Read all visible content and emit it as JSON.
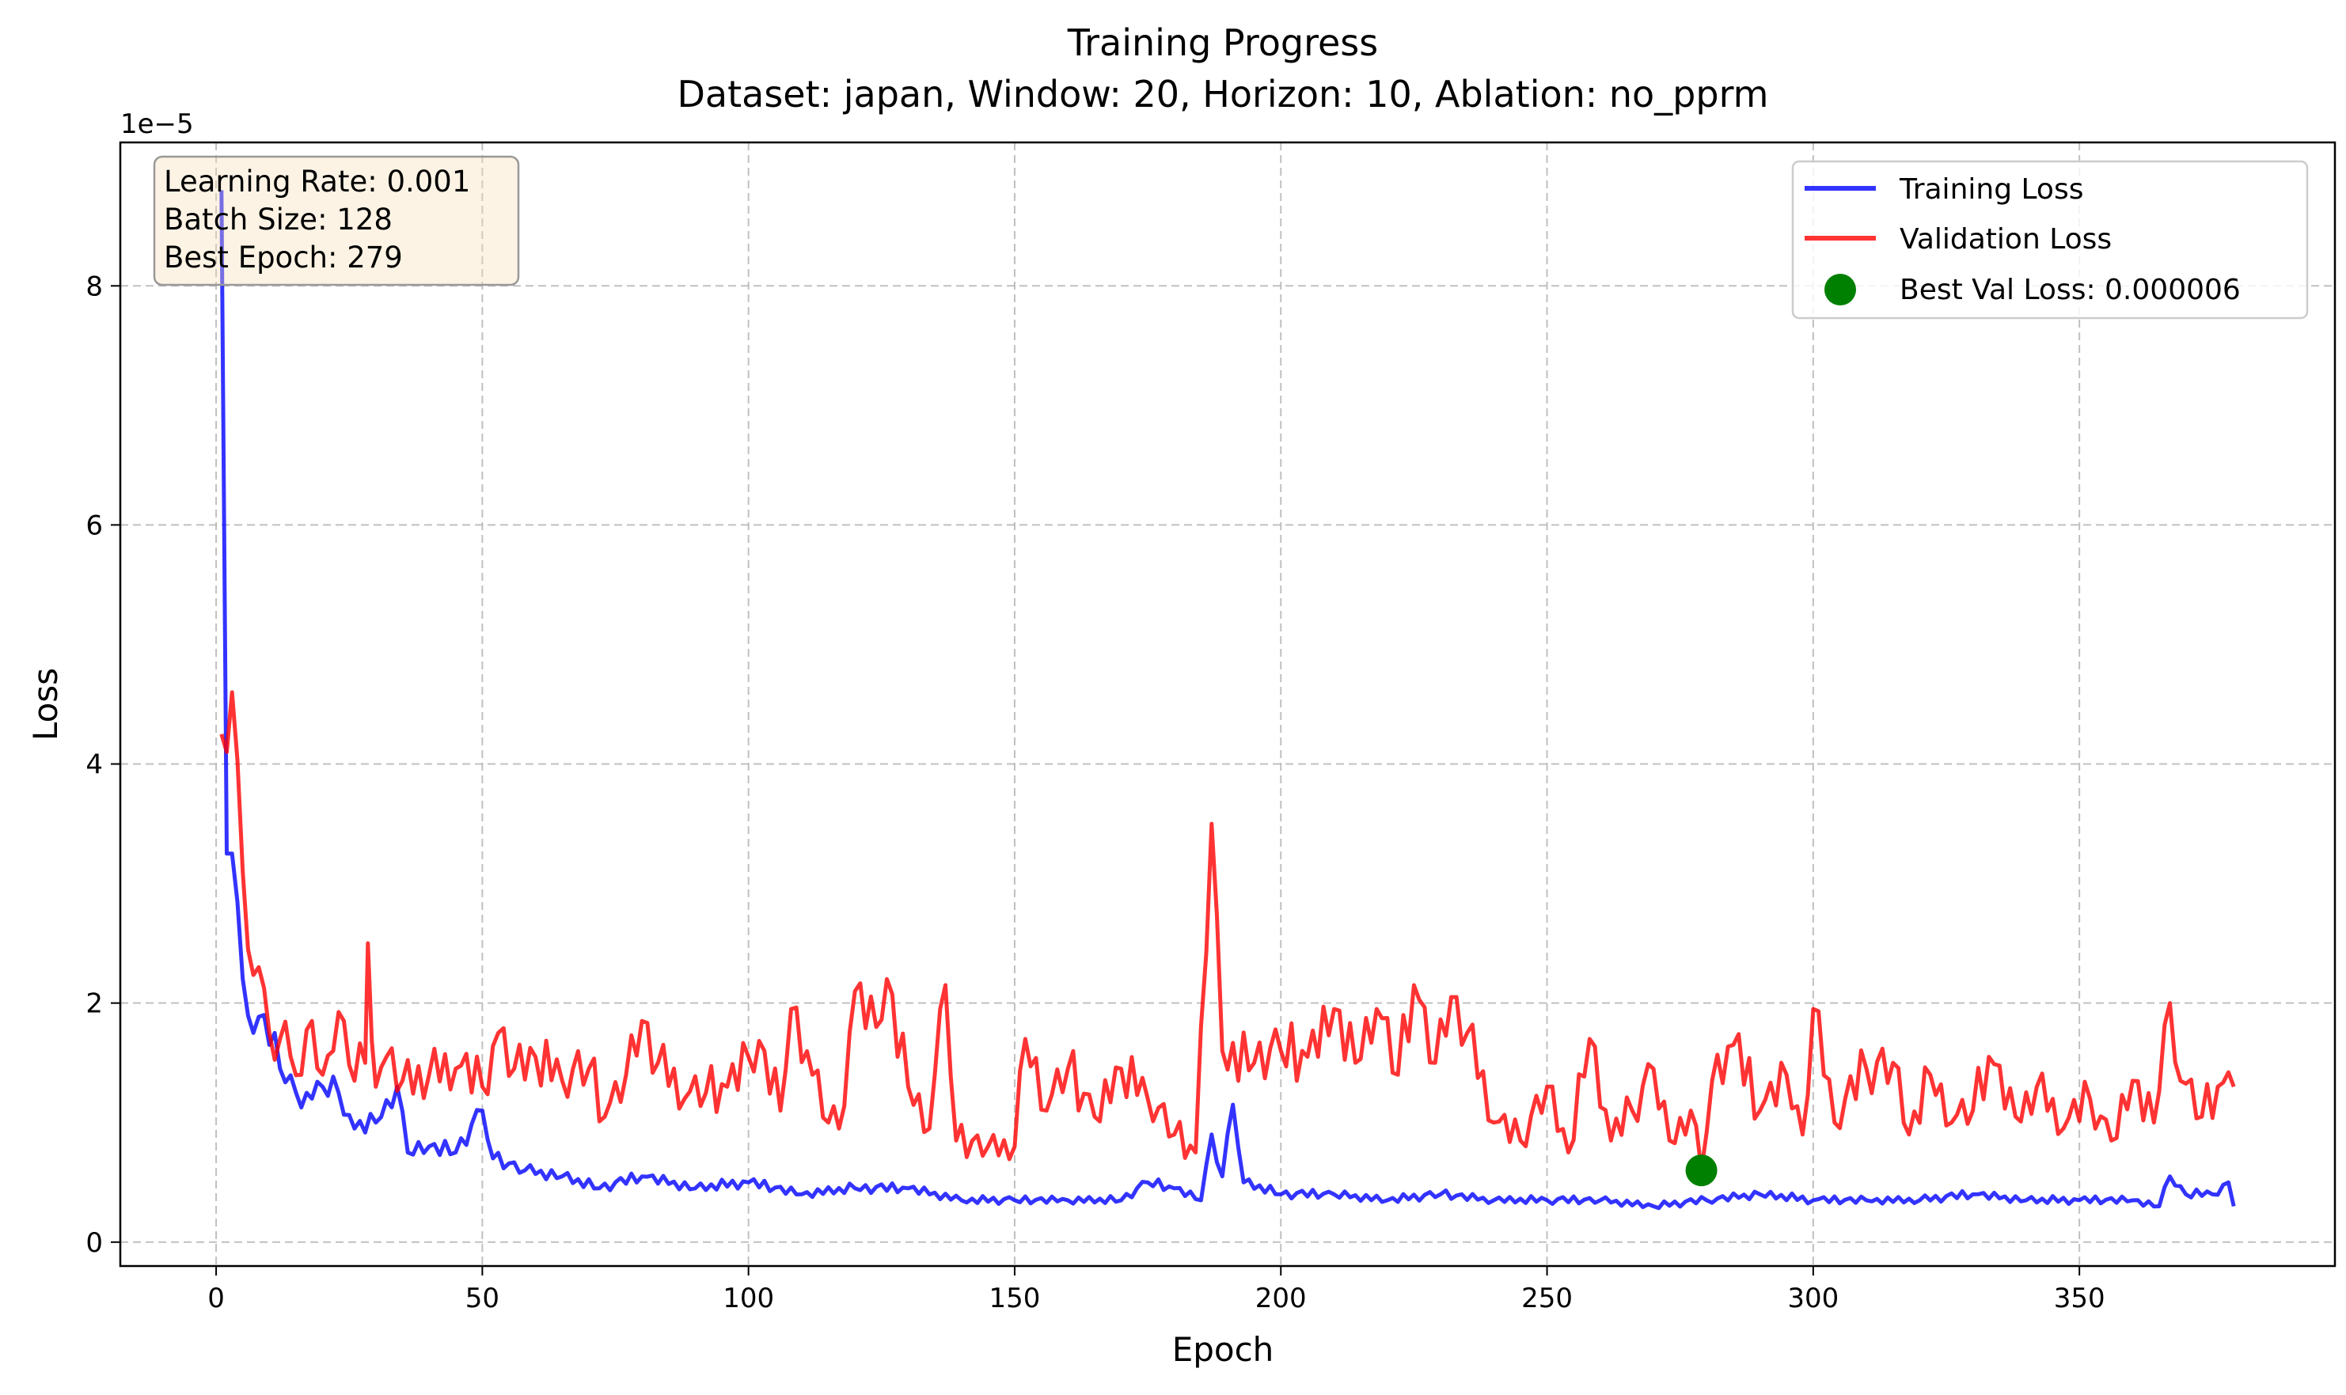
{
  "chart_data": {
    "type": "line",
    "title": "Training Progress",
    "subtitle": "Dataset: japan, Window: 20, Horizon: 10, Ablation: no_pprm",
    "xlabel": "Epoch",
    "ylabel": "Loss",
    "y_scale_label": "1e−5",
    "y_scale": 1e-05,
    "xlim": [
      -18,
      398
    ],
    "ylim": [
      -0.2,
      9.2
    ],
    "x_ticks": [
      0,
      50,
      100,
      150,
      200,
      250,
      300,
      350
    ],
    "y_ticks": [
      0,
      2,
      4,
      6,
      8
    ],
    "grid": true,
    "legend_position": "top-right",
    "info_box": {
      "learning_rate": "Learning Rate: 0.001",
      "batch_size": "Batch Size: 128",
      "best_epoch": "Best Epoch: 279"
    },
    "best_point": {
      "x": 279,
      "y": 0.6,
      "name": "Best Val Loss: 0.000006",
      "color": "#008000"
    },
    "series": [
      {
        "name": "Training Loss",
        "color": "#0000ff",
        "anchors": [
          [
            1,
            8.8
          ],
          [
            2,
            3.25
          ],
          [
            3,
            3.25
          ],
          [
            5,
            2.2
          ],
          [
            7,
            1.75
          ],
          [
            9,
            1.9
          ],
          [
            12,
            1.45
          ],
          [
            15,
            1.25
          ],
          [
            18,
            1.2
          ],
          [
            20,
            1.3
          ],
          [
            23,
            1.25
          ],
          [
            26,
            0.95
          ],
          [
            30,
            1.0
          ],
          [
            34,
            1.3
          ],
          [
            36,
            0.75
          ],
          [
            40,
            0.8
          ],
          [
            45,
            0.75
          ],
          [
            50,
            1.1
          ],
          [
            52,
            0.7
          ],
          [
            58,
            0.6
          ],
          [
            65,
            0.55
          ],
          [
            72,
            0.45
          ],
          [
            80,
            0.55
          ],
          [
            90,
            0.45
          ],
          [
            100,
            0.5
          ],
          [
            110,
            0.4
          ],
          [
            120,
            0.45
          ],
          [
            130,
            0.45
          ],
          [
            140,
            0.35
          ],
          [
            150,
            0.35
          ],
          [
            160,
            0.35
          ],
          [
            170,
            0.35
          ],
          [
            175,
            0.5
          ],
          [
            180,
            0.45
          ],
          [
            185,
            0.35
          ],
          [
            187,
            0.9
          ],
          [
            189,
            0.55
          ],
          [
            191,
            1.15
          ],
          [
            193,
            0.5
          ],
          [
            200,
            0.4
          ],
          [
            210,
            0.4
          ],
          [
            220,
            0.35
          ],
          [
            230,
            0.4
          ],
          [
            240,
            0.35
          ],
          [
            250,
            0.35
          ],
          [
            260,
            0.35
          ],
          [
            270,
            0.3
          ],
          [
            280,
            0.35
          ],
          [
            290,
            0.4
          ],
          [
            300,
            0.35
          ],
          [
            310,
            0.35
          ],
          [
            320,
            0.35
          ],
          [
            330,
            0.4
          ],
          [
            340,
            0.35
          ],
          [
            350,
            0.35
          ],
          [
            360,
            0.35
          ],
          [
            365,
            0.3
          ],
          [
            367,
            0.55
          ],
          [
            370,
            0.4
          ],
          [
            375,
            0.4
          ],
          [
            378,
            0.5
          ],
          [
            379,
            0.3
          ]
        ],
        "noise": [
          0.12,
          -0.08,
          0.06,
          -0.1,
          0.15,
          -0.05,
          0.09,
          -0.13,
          0.04,
          0.11,
          -0.07,
          0.14,
          -0.11,
          0.02,
          0.08,
          -0.09,
          0.13,
          -0.04,
          0.05,
          -0.12,
          0.1,
          -0.06
        ]
      },
      {
        "name": "Validation Loss",
        "color": "#ff0000",
        "anchors": [
          [
            1,
            4.25
          ],
          [
            2,
            4.1
          ],
          [
            3,
            4.6
          ],
          [
            5,
            3.1
          ],
          [
            6,
            2.45
          ],
          [
            8,
            2.3
          ],
          [
            10,
            1.75
          ],
          [
            12,
            1.7
          ],
          [
            14,
            1.55
          ],
          [
            16,
            1.4
          ],
          [
            18,
            1.85
          ],
          [
            20,
            1.4
          ],
          [
            22,
            1.6
          ],
          [
            24,
            1.85
          ],
          [
            26,
            1.35
          ],
          [
            28,
            1.5
          ],
          [
            28.5,
            2.5
          ],
          [
            30,
            1.3
          ],
          [
            32,
            1.55
          ],
          [
            35,
            1.35
          ],
          [
            40,
            1.4
          ],
          [
            45,
            1.45
          ],
          [
            50,
            1.3
          ],
          [
            53,
            1.75
          ],
          [
            56,
            1.45
          ],
          [
            60,
            1.55
          ],
          [
            65,
            1.35
          ],
          [
            70,
            1.45
          ],
          [
            73,
            1.05
          ],
          [
            77,
            1.4
          ],
          [
            80,
            1.85
          ],
          [
            83,
            1.5
          ],
          [
            88,
            1.2
          ],
          [
            92,
            1.25
          ],
          [
            96,
            1.3
          ],
          [
            100,
            1.55
          ],
          [
            103,
            1.6
          ],
          [
            106,
            1.1
          ],
          [
            108,
            1.95
          ],
          [
            112,
            1.4
          ],
          [
            115,
            1.0
          ],
          [
            117,
            0.95
          ],
          [
            120,
            2.1
          ],
          [
            124,
            1.8
          ],
          [
            126,
            2.2
          ],
          [
            130,
            1.3
          ],
          [
            134,
            0.95
          ],
          [
            137,
            2.15
          ],
          [
            139,
            0.85
          ],
          [
            145,
            0.8
          ],
          [
            150,
            0.8
          ],
          [
            152,
            1.7
          ],
          [
            156,
            1.1
          ],
          [
            160,
            1.45
          ],
          [
            165,
            1.05
          ],
          [
            170,
            1.45
          ],
          [
            175,
            1.2
          ],
          [
            180,
            0.9
          ],
          [
            184,
            0.75
          ],
          [
            187,
            3.5
          ],
          [
            189,
            1.6
          ],
          [
            195,
            1.5
          ],
          [
            200,
            1.6
          ],
          [
            205,
            1.55
          ],
          [
            210,
            1.95
          ],
          [
            214,
            1.5
          ],
          [
            218,
            1.95
          ],
          [
            222,
            1.4
          ],
          [
            225,
            2.15
          ],
          [
            229,
            1.5
          ],
          [
            232,
            2.05
          ],
          [
            235,
            1.75
          ],
          [
            240,
            1.0
          ],
          [
            245,
            0.85
          ],
          [
            250,
            1.3
          ],
          [
            254,
            0.75
          ],
          [
            258,
            1.7
          ],
          [
            262,
            0.85
          ],
          [
            266,
            1.1
          ],
          [
            270,
            1.45
          ],
          [
            273,
            0.85
          ],
          [
            277,
            1.1
          ],
          [
            279,
            0.6
          ],
          [
            281,
            1.35
          ],
          [
            285,
            1.65
          ],
          [
            290,
            1.1
          ],
          [
            295,
            1.4
          ],
          [
            298,
            0.9
          ],
          [
            300,
            1.95
          ],
          [
            304,
            1.0
          ],
          [
            310,
            1.45
          ],
          [
            315,
            1.5
          ],
          [
            318,
            0.9
          ],
          [
            322,
            1.4
          ],
          [
            326,
            1.0
          ],
          [
            330,
            1.1
          ],
          [
            333,
            1.55
          ],
          [
            338,
            1.05
          ],
          [
            342,
            1.3
          ],
          [
            347,
            0.95
          ],
          [
            352,
            1.2
          ],
          [
            356,
            0.85
          ],
          [
            360,
            1.35
          ],
          [
            364,
            1.0
          ],
          [
            367,
            2.0
          ],
          [
            369,
            1.35
          ],
          [
            373,
            1.05
          ],
          [
            376,
            1.3
          ],
          [
            379,
            1.3
          ]
        ],
        "noise": [
          0.18,
          -0.14,
          0.1,
          -0.2,
          0.22,
          -0.08,
          0.15,
          -0.17,
          0.06,
          0.2,
          -0.12,
          0.25,
          -0.22,
          0.04,
          0.14,
          -0.16
        ]
      }
    ]
  }
}
